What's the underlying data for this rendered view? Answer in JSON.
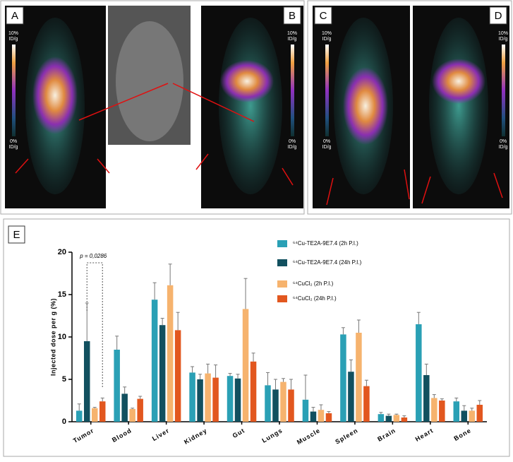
{
  "panels": {
    "labels": [
      "A",
      "B",
      "C",
      "D"
    ],
    "scale_max": [
      "10%",
      "ID/g"
    ],
    "scale_min": [
      "0%",
      "ID/g"
    ]
  },
  "chart_data": {
    "type": "bar",
    "panel_label": "E",
    "y_label": "Injected dose per g (%)",
    "annotation": "p = 0,0286",
    "categories": [
      "Tumor",
      "Blood",
      "Liver",
      "Kidney",
      "Gut",
      "Lungs",
      "Muscle",
      "Spleen",
      "Brain",
      "Heart",
      "Bone"
    ],
    "series": [
      {
        "name": "⁶⁴Cu-TE2A-9E7.4 (2h P.I.)",
        "color": "#2aa0b5",
        "values": [
          1.3,
          8.5,
          14.4,
          5.8,
          5.4,
          4.3,
          2.6,
          10.3,
          0.9,
          11.5,
          2.4
        ],
        "errors": [
          0.8,
          1.6,
          2.0,
          0.7,
          0.3,
          1.5,
          2.9,
          0.8,
          0.2,
          1.4,
          0.4
        ]
      },
      {
        "name": "⁶⁴Cu-TE2A-9E7.4 (24h P.I.)",
        "color": "#12505f",
        "values": [
          9.5,
          3.3,
          11.4,
          5.0,
          5.1,
          3.8,
          1.2,
          5.9,
          0.7,
          5.5,
          1.3
        ],
        "errors": [
          4.5,
          0.8,
          0.8,
          0.6,
          0.5,
          1.2,
          0.5,
          1.4,
          0.2,
          1.3,
          0.6
        ]
      },
      {
        "name": "⁶⁴CuCl₂ (2h P.I.)",
        "color": "#f6b36e",
        "values": [
          1.6,
          1.5,
          16.1,
          5.7,
          13.3,
          4.7,
          1.4,
          10.5,
          0.8,
          2.8,
          1.3
        ],
        "errors": [
          0.1,
          0.1,
          2.5,
          1.1,
          3.6,
          0.4,
          0.6,
          1.5,
          0.1,
          0.4,
          0.3
        ]
      },
      {
        "name": "⁶⁴CuCl₂ (24h P.I.)",
        "color": "#e2571f",
        "values": [
          2.4,
          2.7,
          10.8,
          5.2,
          7.1,
          3.8,
          1.0,
          4.2,
          0.5,
          2.5,
          2.0
        ],
        "errors": [
          0.4,
          0.3,
          2.1,
          1.5,
          1.0,
          1.2,
          0.2,
          0.7,
          0.2,
          0.2,
          0.5
        ]
      }
    ],
    "ylim": [
      0,
      20
    ],
    "yticks": [
      0,
      5,
      10,
      15,
      20
    ]
  }
}
